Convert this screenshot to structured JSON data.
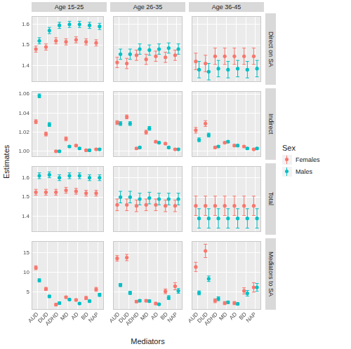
{
  "chart_data": {
    "type": "scatter",
    "x_label": "Mediators",
    "y_label": "Estimates",
    "legend_title": "Sex",
    "legend": "right",
    "grid": true,
    "marker": "circle",
    "categories": [
      "AUD",
      "DUD",
      "ADHD",
      "MD",
      "AD",
      "BD",
      "NAP"
    ],
    "columns": [
      "Age 15-25",
      "Age 26-35",
      "Age 36-45"
    ],
    "series": [
      {
        "name": "Females",
        "color": "#F8766D"
      },
      {
        "name": "Males",
        "color": "#00BFC4"
      }
    ],
    "rows": [
      {
        "title": "Direct on SA",
        "ylim": [
          1.32,
          1.64
        ],
        "yticks": [
          1.4,
          1.5,
          1.6
        ],
        "panels": [
          {
            "values": [
              [
                1.48,
                1.49,
                1.52,
                1.515,
                1.525,
                1.515,
                1.51
              ],
              [
                1.52,
                1.57,
                1.595,
                1.6,
                1.6,
                1.595,
                1.59
              ]
            ],
            "error": [
              [
                0.015,
                0.015,
                0.015,
                0.015,
                0.015,
                0.015,
                0.015
              ],
              [
                0.015,
                0.015,
                0.015,
                0.015,
                0.015,
                0.015,
                0.015
              ]
            ]
          },
          {
            "values": [
              [
                1.415,
                1.41,
                1.45,
                1.43,
                1.445,
                1.44,
                1.45
              ],
              [
                1.455,
                1.455,
                1.48,
                1.475,
                1.48,
                1.485,
                1.48
              ]
            ],
            "error": [
              [
                0.025,
                0.025,
                0.025,
                0.025,
                0.025,
                0.025,
                0.025
              ],
              [
                0.025,
                0.025,
                0.025,
                0.025,
                0.025,
                0.025,
                0.025
              ]
            ]
          },
          {
            "values": [
              [
                1.42,
                1.41,
                1.445,
                1.445,
                1.445,
                1.445,
                1.445
              ],
              [
                1.38,
                1.37,
                1.385,
                1.38,
                1.385,
                1.38,
                1.385
              ]
            ],
            "error": [
              [
                0.04,
                0.04,
                0.04,
                0.04,
                0.04,
                0.04,
                0.04
              ],
              [
                0.04,
                0.04,
                0.04,
                0.04,
                0.04,
                0.04,
                0.04
              ]
            ]
          }
        ]
      },
      {
        "title": "Indirect",
        "ylim": [
          0.994,
          1.063
        ],
        "yticks": [
          {
            "value": 1,
            "label": "1.00"
          },
          1.02,
          1.04,
          1.06
        ],
        "panels": [
          {
            "values": [
              [
                1.031,
                1.018,
                1.0,
                1.013,
                1.006,
                1.001,
                1.002
              ],
              [
                1.058,
                1.028,
                1.0,
                1.005,
                1.003,
                1.001,
                1.002
              ]
            ],
            "error": [
              [
                0.002,
                0.002,
                0.001,
                0.002,
                0.001,
                0.001,
                0.001
              ],
              [
                0.002,
                0.002,
                0.001,
                0.001,
                0.001,
                0.001,
                0.001
              ]
            ]
          },
          {
            "values": [
              [
                1.03,
                1.036,
                1.003,
                1.02,
                1.01,
                1.008,
                1.002
              ],
              [
                1.029,
                1.029,
                1.004,
                1.024,
                1.009,
                1.004,
                1.002
              ]
            ],
            "error": [
              [
                0.002,
                0.002,
                0.001,
                0.002,
                0.001,
                0.001,
                0.001
              ],
              [
                0.002,
                0.002,
                0.001,
                0.002,
                0.001,
                0.001,
                0.001
              ]
            ]
          },
          {
            "values": [
              [
                1.022,
                1.029,
                1.004,
                1.009,
                1.006,
                1.005,
                1.002
              ],
              [
                1.012,
                1.017,
                1.005,
                1.01,
                1.006,
                1.003,
                1.003
              ]
            ],
            "error": [
              [
                0.003,
                0.003,
                0.001,
                0.001,
                0.001,
                0.001,
                0.001
              ],
              [
                0.002,
                0.002,
                0.001,
                0.001,
                0.001,
                0.001,
                0.001
              ]
            ]
          }
        ]
      },
      {
        "title": "Total",
        "ylim": [
          1.32,
          1.66
        ],
        "yticks": [
          1.4,
          1.5,
          1.6
        ],
        "panels": [
          {
            "values": [
              [
                1.525,
                1.525,
                1.525,
                1.535,
                1.53,
                1.52,
                1.52
              ],
              [
                1.61,
                1.615,
                1.6,
                1.61,
                1.61,
                1.6,
                1.6
              ]
            ],
            "error": [
              [
                0.015,
                0.015,
                0.015,
                0.015,
                0.015,
                0.015,
                0.015
              ],
              [
                0.015,
                0.015,
                0.015,
                0.015,
                0.015,
                0.015,
                0.015
              ]
            ]
          },
          {
            "values": [
              [
                1.46,
                1.46,
                1.455,
                1.46,
                1.46,
                1.455,
                1.455
              ],
              [
                1.5,
                1.5,
                1.49,
                1.495,
                1.49,
                1.49,
                1.49
              ]
            ],
            "error": [
              [
                0.03,
                0.03,
                0.03,
                0.03,
                0.03,
                0.03,
                0.03
              ],
              [
                0.03,
                0.03,
                0.03,
                0.03,
                0.03,
                0.03,
                0.03
              ]
            ]
          },
          {
            "values": [
              [
                1.455,
                1.455,
                1.455,
                1.455,
                1.455,
                1.455,
                1.455
              ],
              [
                1.39,
                1.39,
                1.39,
                1.39,
                1.39,
                1.39,
                1.39
              ]
            ],
            "error": [
              [
                0.05,
                0.05,
                0.05,
                0.05,
                0.05,
                0.05,
                0.05
              ],
              [
                0.05,
                0.05,
                0.05,
                0.05,
                0.05,
                0.05,
                0.05
              ]
            ]
          }
        ]
      },
      {
        "title": "Mediators to SA",
        "ylim": [
          0.5,
          18
        ],
        "yticks": [
          5,
          10,
          15
        ],
        "panels": [
          {
            "values": [
              [
                11.2,
                5.8,
                1.8,
                3.7,
                3.0,
                3.5,
                5.7
              ],
              [
                8.0,
                3.9,
                2.2,
                3.1,
                2.1,
                2.7,
                4.3
              ]
            ],
            "error": [
              [
                0.5,
                0.4,
                0.3,
                0.3,
                0.3,
                0.4,
                0.5
              ],
              [
                0.4,
                0.3,
                0.3,
                0.2,
                0.2,
                0.3,
                0.4
              ]
            ]
          },
          {
            "values": [
              [
                13.6,
                13.8,
                2.6,
                2.8,
                2.1,
                5.2,
                6.5
              ],
              [
                6.8,
                4.8,
                2.8,
                2.7,
                1.9,
                3.6,
                5.3
              ]
            ],
            "error": [
              [
                0.7,
                0.8,
                0.3,
                0.3,
                0.3,
                0.6,
                0.9
              ],
              [
                0.4,
                0.4,
                0.3,
                0.3,
                0.2,
                0.5,
                0.6
              ]
            ]
          },
          {
            "values": [
              [
                11.4,
                15.5,
                2.8,
                2.2,
                2.2,
                5.3,
                6.2
              ],
              [
                4.8,
                8.4,
                3.3,
                2.4,
                2.0,
                4.7,
                6.2
              ]
            ],
            "error": [
              [
                1.2,
                1.7,
                0.5,
                0.4,
                0.4,
                0.8,
                1.2
              ],
              [
                0.5,
                0.7,
                0.5,
                0.3,
                0.3,
                0.7,
                1.0
              ]
            ]
          }
        ]
      }
    ]
  }
}
